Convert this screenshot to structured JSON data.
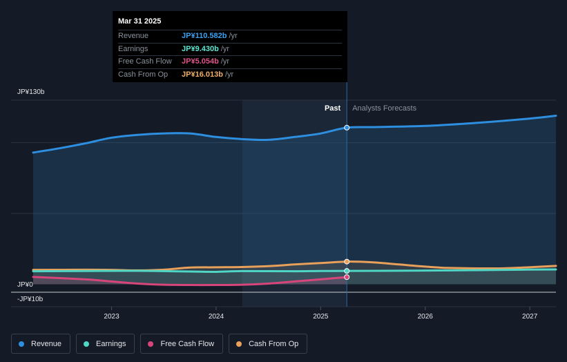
{
  "chart_data": {
    "type": "area",
    "title": "",
    "x_ticks": [
      2023,
      2024,
      2025,
      2026,
      2027
    ],
    "y_labels": {
      "top": "JP¥130b",
      "zero": "JP¥0",
      "bottom": "-JP¥10b"
    },
    "ylim": [
      -10,
      130
    ],
    "divider_date": 2025.25,
    "past_label": "Past",
    "forecast_label": "Analysts Forecasts",
    "series": [
      {
        "name": "Revenue",
        "color": "#2e8fe0",
        "points": [
          [
            2022.25,
            93
          ],
          [
            2022.5,
            96
          ],
          [
            2022.75,
            99.5
          ],
          [
            2023.0,
            103.5
          ],
          [
            2023.25,
            105.5
          ],
          [
            2023.5,
            106.5
          ],
          [
            2023.75,
            106.5
          ],
          [
            2024.0,
            104
          ],
          [
            2024.25,
            102.5
          ],
          [
            2024.5,
            102
          ],
          [
            2024.75,
            104
          ],
          [
            2025.0,
            106.5
          ],
          [
            2025.25,
            110.6
          ],
          [
            2025.5,
            111
          ],
          [
            2026.0,
            111.8
          ],
          [
            2026.5,
            114
          ],
          [
            2027.0,
            117
          ],
          [
            2027.25,
            119
          ]
        ]
      },
      {
        "name": "Earnings",
        "color": "#4fd6c4",
        "points": [
          [
            2022.25,
            9.2
          ],
          [
            2022.75,
            9.4
          ],
          [
            2023.25,
            9.5
          ],
          [
            2023.75,
            9.0
          ],
          [
            2024.0,
            8.8
          ],
          [
            2024.25,
            9.3
          ],
          [
            2024.75,
            9.2
          ],
          [
            2025.0,
            9.4
          ],
          [
            2025.25,
            9.43
          ],
          [
            2025.75,
            9.6
          ],
          [
            2026.25,
            9.8
          ],
          [
            2026.75,
            10.2
          ],
          [
            2027.25,
            10.5
          ]
        ]
      },
      {
        "name": "Free Cash Flow",
        "color": "#d8457b",
        "points": [
          [
            2022.25,
            5.2
          ],
          [
            2022.75,
            3.5
          ],
          [
            2023.0,
            2.0
          ],
          [
            2023.25,
            0.5
          ],
          [
            2023.5,
            -0.3
          ],
          [
            2023.75,
            -0.5
          ],
          [
            2024.0,
            -0.5
          ],
          [
            2024.25,
            -0.3
          ],
          [
            2024.5,
            0.5
          ],
          [
            2024.75,
            2.0
          ],
          [
            2025.0,
            3.5
          ],
          [
            2025.25,
            5.054
          ]
        ]
      },
      {
        "name": "Cash From Op",
        "color": "#e8a05a",
        "points": [
          [
            2022.25,
            10.2
          ],
          [
            2022.75,
            10.3
          ],
          [
            2023.0,
            10.2
          ],
          [
            2023.25,
            9.8
          ],
          [
            2023.5,
            10.3
          ],
          [
            2023.75,
            11.8
          ],
          [
            2024.0,
            12.0
          ],
          [
            2024.25,
            12.2
          ],
          [
            2024.5,
            12.8
          ],
          [
            2024.75,
            14.0
          ],
          [
            2025.0,
            15.0
          ],
          [
            2025.25,
            16.0
          ],
          [
            2025.5,
            15.5
          ],
          [
            2025.75,
            14.0
          ],
          [
            2026.0,
            12.5
          ],
          [
            2026.25,
            11.5
          ],
          [
            2026.75,
            11.3
          ],
          [
            2027.25,
            13.0
          ]
        ]
      }
    ]
  },
  "tooltip": {
    "date": "Mar 31 2025",
    "rows": [
      {
        "label": "Revenue",
        "value": "JP¥110.582b",
        "unit": "/yr",
        "color": "#3aa0f0"
      },
      {
        "label": "Earnings",
        "value": "JP¥9.430b",
        "unit": "/yr",
        "color": "#5ee8d3"
      },
      {
        "label": "Free Cash Flow",
        "value": "JP¥5.054b",
        "unit": "/yr",
        "color": "#e0558a"
      },
      {
        "label": "Cash From Op",
        "value": "JP¥16.013b",
        "unit": "/yr",
        "color": "#f0b067"
      }
    ]
  },
  "legend": [
    {
      "label": "Revenue",
      "color": "#2e8fe0"
    },
    {
      "label": "Earnings",
      "color": "#4fd6c4"
    },
    {
      "label": "Free Cash Flow",
      "color": "#d8457b"
    },
    {
      "label": "Cash From Op",
      "color": "#e8a05a"
    }
  ]
}
